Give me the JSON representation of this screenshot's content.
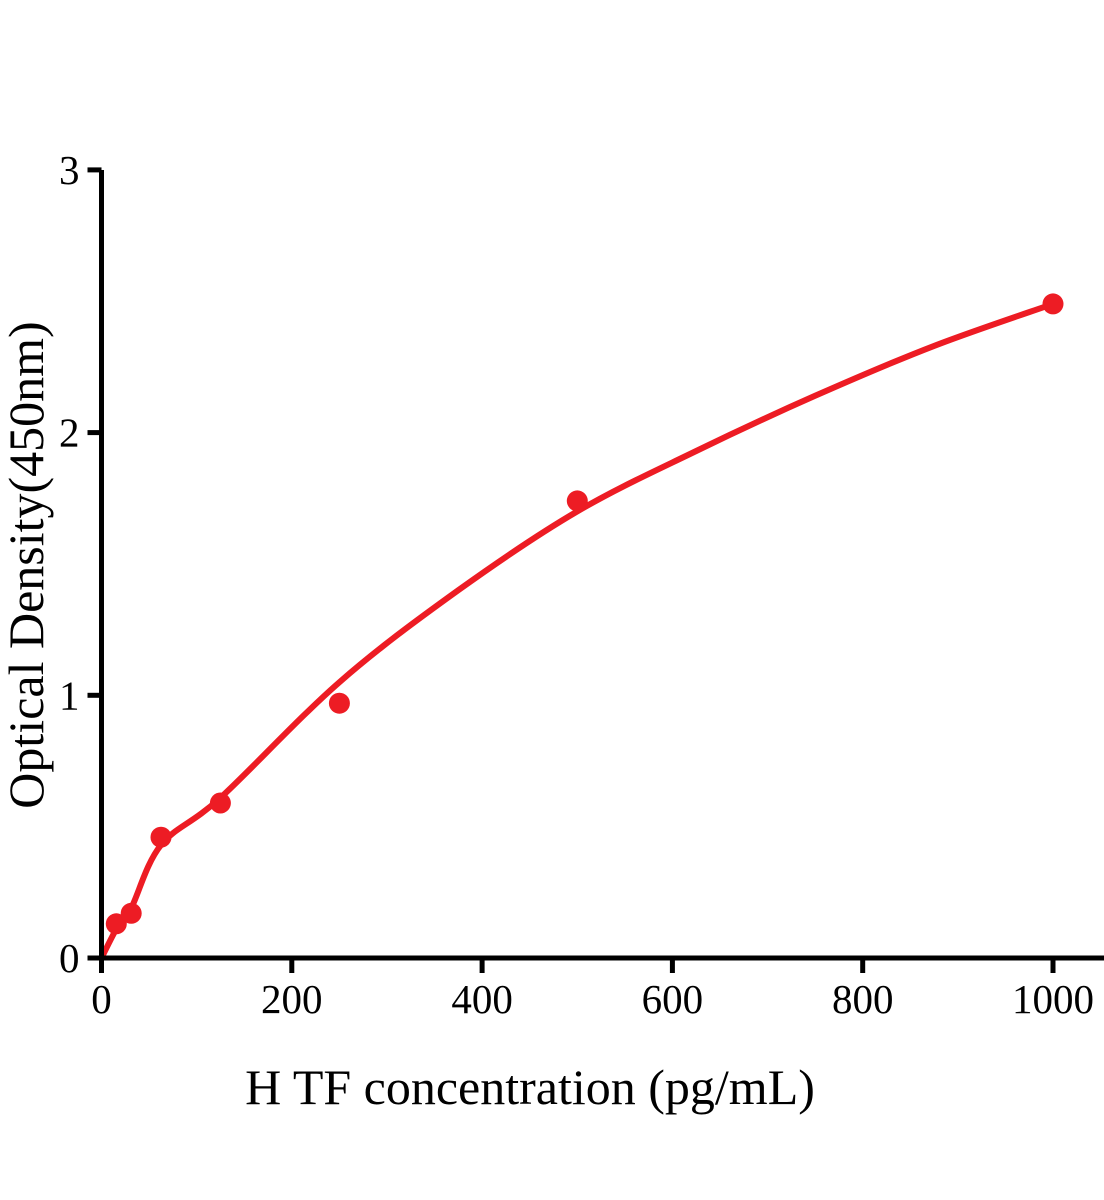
{
  "chart_data": {
    "type": "scatter",
    "title": "",
    "xlabel": "H TF concentration (pg/mL)",
    "ylabel": "Optical Density(450nm)",
    "x_ticks": [
      0,
      200,
      400,
      600,
      800,
      1000
    ],
    "y_ticks": [
      0,
      1,
      2,
      3
    ],
    "xlim": [
      0,
      1054
    ],
    "ylim": [
      0,
      3
    ],
    "grid": false,
    "legend_position": "none",
    "axis_color": "#000000",
    "background_color": "#FFFFFF",
    "series": [
      {
        "name": "standard-points",
        "type": "scatter",
        "x": [
          15.6,
          31.2,
          62.5,
          125,
          250,
          500,
          1000
        ],
        "y": [
          0.13,
          0.17,
          0.46,
          0.59,
          0.97,
          1.74,
          2.49
        ],
        "marker": "circle",
        "marker_color": "#ED1C24"
      },
      {
        "name": "fit-curve",
        "type": "line",
        "x": [
          0,
          15.6,
          31.2,
          62.5,
          125,
          250,
          375,
          500,
          625,
          750,
          875,
          1000
        ],
        "y": [
          0.0,
          0.11,
          0.19,
          0.43,
          0.61,
          1.05,
          1.4,
          1.7,
          1.93,
          2.14,
          2.33,
          2.49
        ],
        "line_color": "#ED1C24"
      }
    ]
  }
}
